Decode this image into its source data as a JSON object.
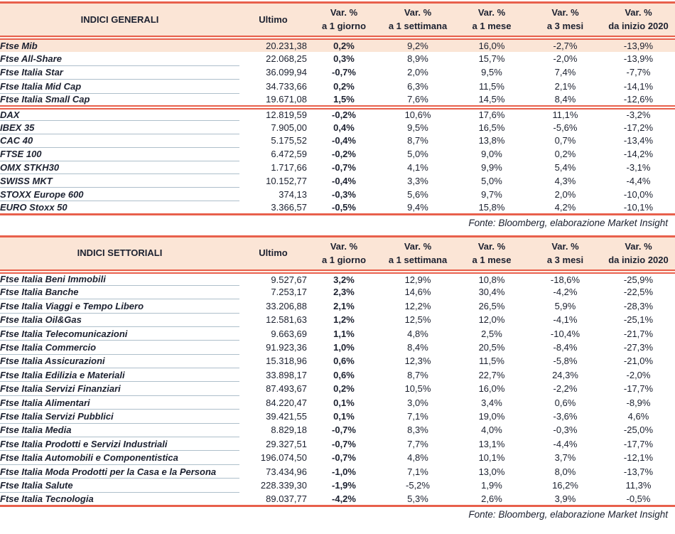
{
  "colors": {
    "accent_red": "#E8604C",
    "header_peach": "#FBE5D6",
    "ink": "#1C2130",
    "row_separator": "#AEBFCB"
  },
  "columns": {
    "var_label": "Var. %",
    "ultimo": "Ultimo",
    "periods": [
      "a 1 giorno",
      "a 1 settimana",
      "a 1 mese",
      "a 3 mesi",
      "da inizio 2020"
    ]
  },
  "source_note": "Fonte: Bloomberg, elaborazione Market Insight",
  "general": {
    "title": "INDICI GENERALI",
    "rows": [
      {
        "name": "Ftse Mib",
        "ultimo": "20.231,38",
        "d1": "0,2%",
        "w1": "9,2%",
        "m1": "16,0%",
        "m3": "-2,7%",
        "ytd": "-13,9%"
      },
      {
        "name": "Ftse All-Share",
        "ultimo": "22.068,25",
        "d1": "0,3%",
        "w1": "8,9%",
        "m1": "15,7%",
        "m3": "-2,0%",
        "ytd": "-13,9%"
      },
      {
        "name": "Ftse Italia Star",
        "ultimo": "36.099,94",
        "d1": "-0,7%",
        "w1": "2,0%",
        "m1": "9,5%",
        "m3": "7,4%",
        "ytd": "-7,7%"
      },
      {
        "name": "Ftse Italia Mid Cap",
        "ultimo": "34.733,66",
        "d1": "0,2%",
        "w1": "6,3%",
        "m1": "11,5%",
        "m3": "2,1%",
        "ytd": "-14,1%"
      },
      {
        "name": "Ftse Italia Small Cap",
        "ultimo": "19.671,08",
        "d1": "1,5%",
        "w1": "7,6%",
        "m1": "14,5%",
        "m3": "8,4%",
        "ytd": "-12,6%"
      },
      {
        "name": "DAX",
        "ultimo": "12.819,59",
        "d1": "-0,2%",
        "w1": "10,6%",
        "m1": "17,6%",
        "m3": "11,1%",
        "ytd": "-3,2%"
      },
      {
        "name": "IBEX 35",
        "ultimo": "7.905,00",
        "d1": "0,4%",
        "w1": "9,5%",
        "m1": "16,5%",
        "m3": "-5,6%",
        "ytd": "-17,2%"
      },
      {
        "name": "CAC 40",
        "ultimo": "5.175,52",
        "d1": "-0,4%",
        "w1": "8,7%",
        "m1": "13,8%",
        "m3": "0,7%",
        "ytd": "-13,4%"
      },
      {
        "name": "FTSE 100",
        "ultimo": "6.472,59",
        "d1": "-0,2%",
        "w1": "5,0%",
        "m1": "9,0%",
        "m3": "0,2%",
        "ytd": "-14,2%"
      },
      {
        "name": "OMX STKH30",
        "ultimo": "1.717,66",
        "d1": "-0,7%",
        "w1": "4,1%",
        "m1": "9,9%",
        "m3": "5,4%",
        "ytd": "-3,1%"
      },
      {
        "name": "SWISS MKT",
        "ultimo": "10.152,77",
        "d1": "-0,4%",
        "w1": "3,3%",
        "m1": "5,0%",
        "m3": "4,3%",
        "ytd": "-4,4%"
      },
      {
        "name": "STOXX Europe 600",
        "ultimo": "374,13",
        "d1": "-0,3%",
        "w1": "5,6%",
        "m1": "9,7%",
        "m3": "2,0%",
        "ytd": "-10,0%"
      },
      {
        "name": "EURO Stoxx 50",
        "ultimo": "3.366,57",
        "d1": "-0,5%",
        "w1": "9,4%",
        "m1": "15,8%",
        "m3": "4,2%",
        "ytd": "-10,1%"
      }
    ]
  },
  "sector": {
    "title": "INDICI SETTORIALI",
    "rows": [
      {
        "name": "Ftse Italia Beni Immobili",
        "ultimo": "9.527,67",
        "d1": "3,2%",
        "w1": "12,9%",
        "m1": "10,8%",
        "m3": "-18,6%",
        "ytd": "-25,9%"
      },
      {
        "name": "Ftse Italia Banche",
        "ultimo": "7.253,17",
        "d1": "2,3%",
        "w1": "14,6%",
        "m1": "30,4%",
        "m3": "-4,2%",
        "ytd": "-22,5%"
      },
      {
        "name": "Ftse Italia Viaggi e Tempo Libero",
        "ultimo": "33.206,88",
        "d1": "2,1%",
        "w1": "12,2%",
        "m1": "26,5%",
        "m3": "5,9%",
        "ytd": "-28,3%"
      },
      {
        "name": "Ftse Italia Oil&Gas",
        "ultimo": "12.581,63",
        "d1": "1,2%",
        "w1": "12,5%",
        "m1": "12,0%",
        "m3": "-4,1%",
        "ytd": "-25,1%"
      },
      {
        "name": "Ftse Italia Telecomunicazioni",
        "ultimo": "9.663,69",
        "d1": "1,1%",
        "w1": "4,8%",
        "m1": "2,5%",
        "m3": "-10,4%",
        "ytd": "-21,7%"
      },
      {
        "name": "Ftse Italia Commercio",
        "ultimo": "91.923,36",
        "d1": "1,0%",
        "w1": "8,4%",
        "m1": "20,5%",
        "m3": "-8,4%",
        "ytd": "-27,3%"
      },
      {
        "name": "Ftse Italia Assicurazioni",
        "ultimo": "15.318,96",
        "d1": "0,6%",
        "w1": "12,3%",
        "m1": "11,5%",
        "m3": "-5,8%",
        "ytd": "-21,0%"
      },
      {
        "name": "Ftse Italia Edilizia e Materiali",
        "ultimo": "33.898,17",
        "d1": "0,6%",
        "w1": "8,7%",
        "m1": "22,7%",
        "m3": "24,3%",
        "ytd": "-2,0%"
      },
      {
        "name": "Ftse Italia Servizi Finanziari",
        "ultimo": "87.493,67",
        "d1": "0,2%",
        "w1": "10,5%",
        "m1": "16,0%",
        "m3": "-2,2%",
        "ytd": "-17,7%"
      },
      {
        "name": "Ftse Italia Alimentari",
        "ultimo": "84.220,47",
        "d1": "0,1%",
        "w1": "3,0%",
        "m1": "3,4%",
        "m3": "0,6%",
        "ytd": "-8,9%"
      },
      {
        "name": "Ftse Italia Servizi Pubblici",
        "ultimo": "39.421,55",
        "d1": "0,1%",
        "w1": "7,1%",
        "m1": "19,0%",
        "m3": "-3,6%",
        "ytd": "4,6%"
      },
      {
        "name": "Ftse Italia Media",
        "ultimo": "8.829,18",
        "d1": "-0,7%",
        "w1": "8,3%",
        "m1": "4,0%",
        "m3": "-0,3%",
        "ytd": "-25,0%"
      },
      {
        "name": "Ftse Italia Prodotti e Servizi Industriali",
        "ultimo": "29.327,51",
        "d1": "-0,7%",
        "w1": "7,7%",
        "m1": "13,1%",
        "m3": "-4,4%",
        "ytd": "-17,7%"
      },
      {
        "name": "Ftse Italia Automobili e Componentistica",
        "ultimo": "196.074,50",
        "d1": "-0,7%",
        "w1": "4,8%",
        "m1": "10,1%",
        "m3": "3,7%",
        "ytd": "-12,1%"
      },
      {
        "name": "Ftse Italia Moda Prodotti per la Casa e la Persona",
        "ultimo": "73.434,96",
        "d1": "-1,0%",
        "w1": "7,1%",
        "m1": "13,0%",
        "m3": "8,0%",
        "ytd": "-13,7%"
      },
      {
        "name": "Ftse Italia Salute",
        "ultimo": "228.339,30",
        "d1": "-1,9%",
        "w1": "-5,2%",
        "m1": "1,9%",
        "m3": "16,2%",
        "ytd": "11,3%"
      },
      {
        "name": "Ftse Italia Tecnologia",
        "ultimo": "89.037,77",
        "d1": "-4,2%",
        "w1": "5,3%",
        "m1": "2,6%",
        "m3": "3,9%",
        "ytd": "-0,5%"
      }
    ]
  }
}
